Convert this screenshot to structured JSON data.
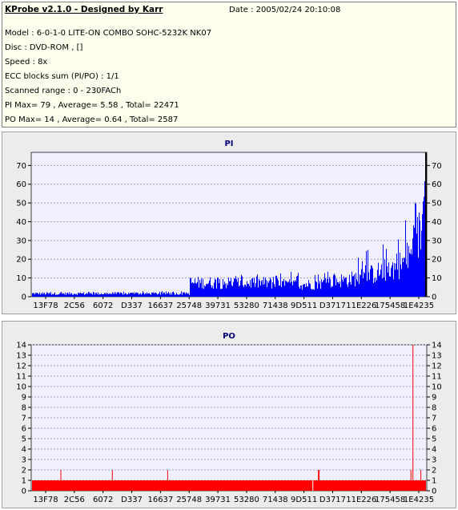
{
  "info": {
    "title": "KProbe v2.1.0 - Designed by Karr",
    "date": "Date : 2005/02/24 20:10:08",
    "lines": [
      "Model : 6-0-1-0 LITE-ON COMBO SOHC-5232K NK07",
      "Disc : DVD-ROM ,  []",
      "Speed : 8x",
      "ECC blocks sum (PI/PO) : 1/1",
      "Scanned range : 0 - 230FACh",
      "PI Max= 79 , Average= 5.58 , Total= 22471",
      "PO Max= 14 , Average= 0.64 , Total= 2587"
    ]
  },
  "colors": {
    "pi_bars": "#0000ff",
    "po_bars": "#ff0000",
    "plot_background": "#f0f0ff",
    "grid": "#a0a0c0"
  },
  "chart_data": [
    {
      "type": "bar",
      "title": "PI",
      "x_tick_labels": [
        "13F78",
        "2C56",
        "6072",
        "D337",
        "16637",
        "25748",
        "39731",
        "53280",
        "71438",
        "9D511",
        "D3717",
        "11E226",
        "175458",
        "1E4235"
      ],
      "y_ticks": [
        0,
        10,
        20,
        30,
        40,
        50,
        60,
        70
      ],
      "ylim": [
        0,
        77
      ],
      "grid": true,
      "right_axis_mirrored": true,
      "profile": {
        "x_fraction": [
          0.0,
          0.04,
          0.08,
          0.12,
          0.16,
          0.2,
          0.24,
          0.28,
          0.32,
          0.36,
          0.4,
          0.399,
          0.44,
          0.48,
          0.52,
          0.56,
          0.6,
          0.64,
          0.68,
          0.72,
          0.76,
          0.8,
          0.84,
          0.88,
          0.92,
          0.94,
          0.96,
          0.98,
          0.995,
          1.0
        ],
        "typical_value": [
          2,
          2,
          2,
          2,
          2,
          2,
          2,
          2,
          2,
          2,
          2,
          9,
          9,
          9,
          9,
          9,
          9,
          8,
          8,
          8,
          10,
          11,
          13,
          16,
          19,
          22,
          28,
          40,
          52,
          60
        ],
        "peak_value": [
          3,
          3,
          3,
          3,
          3,
          3,
          3,
          3,
          3,
          3,
          3,
          12,
          12,
          12,
          12,
          12,
          12,
          13,
          14,
          14,
          17,
          20,
          25,
          30,
          36,
          40,
          48,
          55,
          63,
          79
        ]
      }
    },
    {
      "type": "bar",
      "title": "PO",
      "x_tick_labels": [
        "13F78",
        "2C56",
        "6072",
        "D337",
        "16637",
        "25748",
        "39731",
        "53280",
        "71438",
        "9D511",
        "D3717",
        "11E226",
        "175458",
        "1E4235"
      ],
      "y_ticks": [
        0,
        1,
        2,
        3,
        4,
        5,
        6,
        7,
        8,
        9,
        10,
        11,
        12,
        13,
        14
      ],
      "ylim": [
        0,
        14
      ],
      "grid": true,
      "right_axis_mirrored": true,
      "baseline_value": 1,
      "spikes": [
        {
          "x_fraction": 0.075,
          "value": 2
        },
        {
          "x_fraction": 0.205,
          "value": 2
        },
        {
          "x_fraction": 0.345,
          "value": 2
        },
        {
          "x_fraction": 0.712,
          "value": 0
        },
        {
          "x_fraction": 0.726,
          "value": 2
        },
        {
          "x_fraction": 0.728,
          "value": 2
        },
        {
          "x_fraction": 0.96,
          "value": 2
        },
        {
          "x_fraction": 0.965,
          "value": 14
        },
        {
          "x_fraction": 0.985,
          "value": 2
        }
      ]
    }
  ]
}
